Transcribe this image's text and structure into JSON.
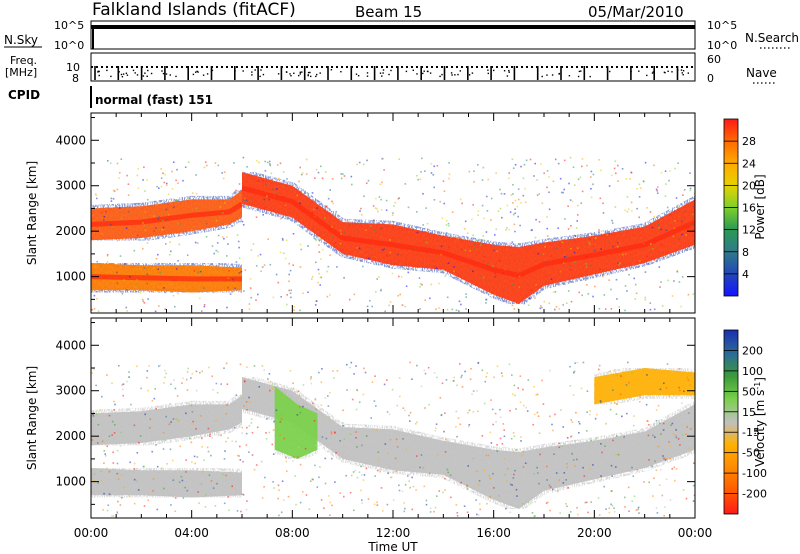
{
  "header": {
    "station": "Falkland Islands (fitACF)",
    "beam": "Beam 15",
    "date": "05/Mar/2010"
  },
  "top_panels": {
    "nsky_label": "N.Sky",
    "nsky_ticks": [
      "10^5",
      "10^0"
    ],
    "nsearch_label": "N.Search",
    "nsearch_ticks": [
      "10^5",
      "10^0"
    ],
    "freq_label_1": "Freq.",
    "freq_label_2": "[MHz]",
    "freq_ticks": [
      "10",
      "8"
    ],
    "nave_label": "Nave",
    "nave_ticks": [
      "60",
      "0"
    ],
    "cpid_label": "CPID",
    "cpid_value": "normal (fast) 151"
  },
  "chart_data": [
    {
      "type": "heatmap",
      "name": "power",
      "ylabel": "Slant Range [km]",
      "yticks": [
        "1000",
        "2000",
        "3000",
        "4000"
      ],
      "ylim": [
        200,
        4600
      ],
      "xlim": [
        0,
        24
      ],
      "colorbar_label": "Power [dB]",
      "colorbar_ticks": [
        "28",
        "24",
        "20",
        "16",
        "12",
        "8",
        "4"
      ],
      "colorbar_colors": [
        "#ff1a1a",
        "#ff6a00",
        "#ffaa00",
        "#e6d200",
        "#7fd02a",
        "#2a9a55",
        "#2f7a8a",
        "#2346b8",
        "#1414ff"
      ],
      "bands": [
        {
          "x": [
            0.0,
            2.0,
            4.0,
            5.5,
            6.0
          ],
          "lower": [
            1800,
            1850,
            2000,
            2150,
            2300
          ],
          "upper": [
            2500,
            2550,
            2700,
            2700,
            2900
          ],
          "core": "#ff5a10"
        },
        {
          "x": [
            0.0,
            2.0,
            4.0,
            6.0
          ],
          "lower": [
            700,
            700,
            650,
            700
          ],
          "upper": [
            1300,
            1250,
            1250,
            1200
          ],
          "core": "#ff7a00"
        },
        {
          "x": [
            6.0,
            8.0,
            10.0,
            12.0,
            14.0,
            16.0,
            17.0,
            18.0,
            20.0,
            22.0,
            24.0
          ],
          "lower": [
            2600,
            2300,
            1500,
            1250,
            1150,
            600,
            400,
            800,
            1050,
            1300,
            1700
          ],
          "upper": [
            3300,
            3000,
            2200,
            2150,
            1900,
            1700,
            1650,
            1750,
            1900,
            2100,
            2700
          ],
          "core": "#ff3a10"
        }
      ]
    },
    {
      "type": "heatmap",
      "name": "velocity",
      "ylabel": "Slant Range [km]",
      "yticks": [
        "1000",
        "2000",
        "3000",
        "4000"
      ],
      "ylim": [
        200,
        4600
      ],
      "xlim": [
        0,
        24
      ],
      "xlabel": "Time UT",
      "xticks": [
        "00:00",
        "04:00",
        "08:00",
        "12:00",
        "16:00",
        "20:00",
        "00:00"
      ],
      "colorbar_label": "Velocity [m s^-1]",
      "colorbar_ticks": [
        "200",
        "100",
        "50",
        "15",
        "-15",
        "-50",
        "-100",
        "-200"
      ],
      "colorbar_colors": [
        "#1a2fb0",
        "#2a6a9a",
        "#3a9a3a",
        "#7ad04a",
        "#c0c0c0",
        "#ffb000",
        "#ff8a00",
        "#ff5a00",
        "#ff1a1a"
      ],
      "bands": [
        {
          "x": [
            0.0,
            2.0,
            4.0,
            5.5,
            6.0
          ],
          "lower": [
            1800,
            1850,
            2000,
            2150,
            2300
          ],
          "upper": [
            2500,
            2550,
            2700,
            2700,
            2900
          ],
          "core": "#c0c0c0"
        },
        {
          "x": [
            0.0,
            2.0,
            4.0,
            6.0
          ],
          "lower": [
            700,
            700,
            650,
            700
          ],
          "upper": [
            1300,
            1250,
            1250,
            1200
          ],
          "core": "#c0c0c0"
        },
        {
          "x": [
            6.0,
            8.0,
            10.0,
            12.0,
            14.0,
            16.0,
            17.0,
            18.0,
            20.0,
            22.0,
            24.0
          ],
          "lower": [
            2600,
            2300,
            1500,
            1250,
            1150,
            600,
            400,
            800,
            1050,
            1300,
            1700
          ],
          "upper": [
            3300,
            3000,
            2200,
            2150,
            1900,
            1700,
            1650,
            1750,
            1900,
            2100,
            2700
          ],
          "core": "#c0c0c0"
        },
        {
          "x": [
            7.3,
            8.2,
            9.0
          ],
          "lower": [
            1700,
            1500,
            1700
          ],
          "upper": [
            3100,
            2700,
            2500
          ],
          "core": "#7ad04a"
        },
        {
          "x": [
            20.0,
            22.0,
            24.0
          ],
          "lower": [
            2700,
            2900,
            2900
          ],
          "upper": [
            3300,
            3500,
            3400
          ],
          "core": "#ffb000"
        }
      ]
    }
  ]
}
